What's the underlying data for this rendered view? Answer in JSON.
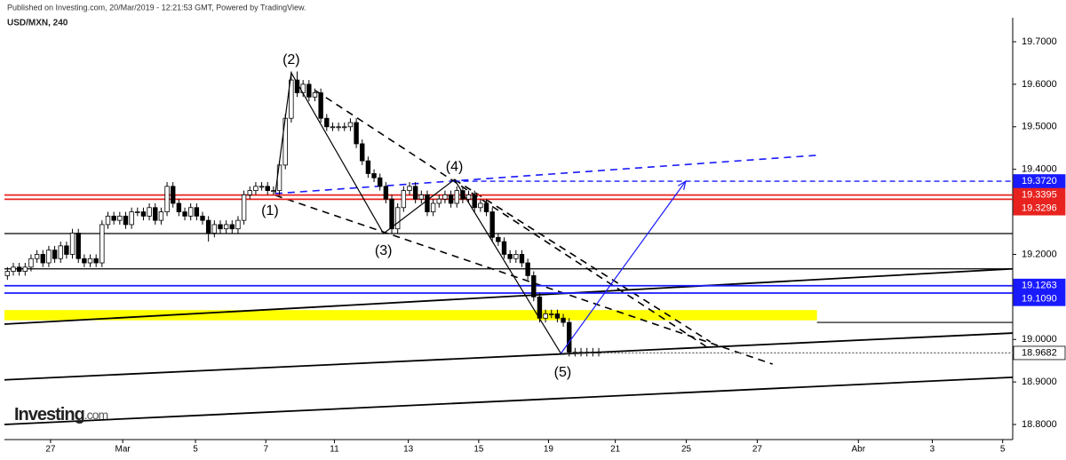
{
  "header": {
    "published": "Published on Investing.com, 20/Mar/2019 - 12:21:53 GMT, Powered by TradingView.",
    "symbol": "USD/MXN, 240",
    "logo": "Investing",
    "logo_suffix": ".com"
  },
  "chart_data": {
    "type": "candlestick",
    "x": [
      0,
      1,
      2,
      3,
      4,
      5,
      6,
      7,
      8,
      9,
      10,
      11,
      12,
      13,
      14,
      15,
      16,
      17,
      18,
      19,
      20,
      21,
      22,
      23,
      24,
      25,
      26,
      27,
      28,
      29,
      30,
      31,
      32,
      33,
      34,
      35,
      36,
      37,
      38,
      39,
      40,
      41,
      42,
      43,
      44,
      45,
      46,
      47,
      48,
      49,
      50,
      51,
      52,
      53,
      54,
      55,
      56,
      57,
      58,
      59,
      60,
      61,
      62,
      63,
      64,
      65,
      66,
      67,
      68,
      69,
      70,
      71,
      72,
      73,
      74,
      75,
      76,
      77,
      78,
      79,
      80,
      81,
      82,
      83,
      84,
      85,
      86,
      87,
      88,
      89,
      90,
      91,
      92,
      93,
      94,
      95,
      96,
      97,
      98,
      99,
      100
    ],
    "open": [
      19.15,
      19.16,
      19.17,
      19.16,
      19.17,
      19.19,
      19.2,
      19.18,
      19.21,
      19.19,
      19.22,
      19.2,
      19.25,
      19.19,
      19.18,
      19.19,
      19.18,
      19.27,
      19.29,
      19.28,
      19.29,
      19.27,
      19.3,
      19.3,
      19.29,
      19.31,
      19.28,
      19.3,
      19.36,
      19.32,
      19.3,
      19.29,
      19.31,
      19.29,
      19.28,
      19.25,
      19.27,
      19.26,
      19.27,
      19.26,
      19.28,
      19.34,
      19.35,
      19.36,
      19.36,
      19.35,
      19.35,
      19.41,
      19.52,
      19.61,
      19.58,
      19.6,
      19.57,
      19.58,
      19.52,
      19.5,
      19.5,
      19.5,
      19.5,
      19.51,
      19.46,
      19.42,
      19.39,
      19.38,
      19.36,
      19.33,
      19.26,
      19.31,
      19.35,
      19.36,
      19.33,
      19.34,
      19.3,
      19.32,
      19.33,
      19.34,
      19.32,
      19.35,
      19.33,
      19.34,
      19.31,
      19.32,
      19.3,
      19.24,
      19.23,
      19.2,
      19.19,
      19.2,
      19.18,
      19.15,
      19.1,
      19.05,
      19.06,
      19.06,
      19.05,
      19.04,
      18.97,
      18.97,
      18.97,
      18.97,
      18.97
    ],
    "high": [
      19.17,
      19.18,
      19.18,
      19.18,
      19.2,
      19.21,
      19.21,
      19.22,
      19.22,
      19.23,
      19.23,
      19.26,
      19.26,
      19.2,
      19.2,
      19.2,
      19.28,
      19.3,
      19.3,
      19.3,
      19.3,
      19.31,
      19.31,
      19.31,
      19.32,
      19.32,
      19.31,
      19.37,
      19.37,
      19.33,
      19.31,
      19.32,
      19.32,
      19.3,
      19.29,
      19.28,
      19.28,
      19.28,
      19.28,
      19.29,
      19.35,
      19.36,
      19.37,
      19.37,
      19.37,
      19.36,
      19.42,
      19.53,
      19.63,
      19.63,
      19.61,
      19.61,
      19.59,
      19.59,
      19.53,
      19.51,
      19.51,
      19.51,
      19.52,
      19.52,
      19.47,
      19.43,
      19.4,
      19.39,
      19.37,
      19.34,
      19.32,
      19.36,
      19.37,
      19.37,
      19.35,
      19.35,
      19.33,
      19.34,
      19.35,
      19.35,
      19.36,
      19.36,
      19.35,
      19.35,
      19.33,
      19.33,
      19.31,
      19.25,
      19.24,
      19.21,
      19.21,
      19.21,
      19.19,
      19.16,
      19.11,
      19.07,
      19.07,
      19.07,
      19.06,
      19.05,
      18.98,
      18.98,
      18.98,
      18.98,
      18.98
    ],
    "low": [
      19.14,
      19.15,
      19.15,
      19.15,
      19.16,
      19.18,
      19.17,
      19.17,
      19.18,
      19.18,
      19.19,
      19.19,
      19.18,
      19.17,
      19.17,
      19.17,
      19.17,
      19.26,
      19.27,
      19.27,
      19.26,
      19.26,
      19.29,
      19.28,
      19.28,
      19.27,
      19.27,
      19.29,
      19.31,
      19.29,
      19.28,
      19.28,
      19.28,
      19.27,
      19.23,
      19.24,
      19.25,
      19.25,
      19.25,
      19.25,
      19.27,
      19.33,
      19.34,
      19.35,
      19.34,
      19.34,
      19.34,
      19.4,
      19.51,
      19.57,
      19.57,
      19.56,
      19.56,
      19.51,
      19.49,
      19.49,
      19.49,
      19.49,
      19.49,
      19.45,
      19.41,
      19.38,
      19.37,
      19.35,
      19.32,
      19.25,
      19.25,
      19.3,
      19.34,
      19.32,
      19.32,
      19.29,
      19.29,
      19.31,
      19.32,
      19.31,
      19.31,
      19.32,
      19.32,
      19.3,
      19.3,
      19.29,
      19.23,
      19.22,
      19.19,
      19.18,
      19.18,
      19.17,
      19.14,
      19.09,
      19.04,
      19.04,
      19.05,
      19.04,
      19.03,
      18.96,
      18.96,
      18.96,
      18.96,
      18.96,
      18.96
    ],
    "close": [
      19.16,
      19.17,
      19.16,
      19.17,
      19.19,
      19.2,
      19.18,
      19.21,
      19.19,
      19.22,
      19.2,
      19.25,
      19.19,
      19.18,
      19.19,
      19.18,
      19.27,
      19.29,
      19.28,
      19.29,
      19.27,
      19.3,
      19.3,
      19.29,
      19.31,
      19.28,
      19.3,
      19.36,
      19.32,
      19.3,
      19.29,
      19.31,
      19.29,
      19.28,
      19.25,
      19.27,
      19.26,
      19.27,
      19.26,
      19.28,
      19.34,
      19.35,
      19.36,
      19.36,
      19.35,
      19.35,
      19.41,
      19.52,
      19.61,
      19.58,
      19.6,
      19.57,
      19.58,
      19.52,
      19.5,
      19.5,
      19.5,
      19.5,
      19.51,
      19.46,
      19.42,
      19.39,
      19.38,
      19.36,
      19.33,
      19.26,
      19.31,
      19.35,
      19.36,
      19.33,
      19.34,
      19.3,
      19.32,
      19.33,
      19.34,
      19.32,
      19.35,
      19.33,
      19.34,
      19.31,
      19.32,
      19.3,
      19.24,
      19.23,
      19.2,
      19.19,
      19.2,
      19.18,
      19.15,
      19.1,
      19.05,
      19.06,
      19.06,
      19.05,
      19.04,
      18.97,
      18.97,
      18.97,
      18.97,
      18.97,
      18.97
    ],
    "up_color": "#ffffff",
    "down_color": "#000000",
    "xlim": [
      -0.5,
      170
    ],
    "xticks": [
      {
        "value": 7.3,
        "label": "27"
      },
      {
        "value": 19.5,
        "label": "Mar"
      },
      {
        "value": 31.8,
        "label": "5"
      },
      {
        "value": 43.7,
        "label": "7"
      },
      {
        "value": 55.3,
        "label": "11"
      },
      {
        "value": 67.8,
        "label": "13"
      },
      {
        "value": 79.7,
        "label": "15"
      },
      {
        "value": 91.5,
        "label": "19"
      },
      {
        "value": 102.8,
        "label": "21"
      },
      {
        "value": 114.8,
        "label": "25"
      },
      {
        "value": 126.8,
        "label": "27"
      },
      {
        "value": 143.9,
        "label": "Abr"
      },
      {
        "value": 156.4,
        "label": "3"
      },
      {
        "value": 168.3,
        "label": "5"
      }
    ],
    "ylim": [
      18.7645,
      19.7355
    ],
    "yticks": [
      {
        "value": 19.7,
        "label": "19.7000"
      },
      {
        "value": 19.6,
        "label": "19.6000"
      },
      {
        "value": 19.5,
        "label": "19.5000"
      },
      {
        "value": 19.4,
        "label": "19.4000"
      },
      {
        "value": 19.2,
        "label": "19.2000"
      },
      {
        "value": 19.0,
        "label": "19.0000"
      },
      {
        "value": 18.9,
        "label": "18.9000"
      },
      {
        "value": 18.8,
        "label": "18.8000"
      }
    ],
    "levels": [
      {
        "value": 19.372,
        "label": "19.3720",
        "color": "#1a1aff",
        "text_color": "#ffffff",
        "dashed": true,
        "x0": 75.6
      },
      {
        "value": 19.3395,
        "label": "19.3395",
        "color": "#e8231f",
        "text_color": "#ffffff",
        "dashed": false,
        "x0": -0.5
      },
      {
        "value": 19.3296,
        "label": "19.3296",
        "color": "#e8231f",
        "text_color": "#ffffff",
        "dashed": false,
        "x0": -0.5
      },
      {
        "value": 19.1263,
        "label": "19.1263",
        "color": "#1a1aff",
        "text_color": "#ffffff",
        "dashed": false,
        "x0": -0.5
      },
      {
        "value": 19.109,
        "label": "19.1090",
        "color": "#1a1aff",
        "text_color": "#ffffff",
        "dashed": false,
        "x0": -0.5
      },
      {
        "value": 18.9682,
        "label": "18.9682",
        "color": "#ffffff",
        "text_color": "#000000",
        "dashed": true,
        "x0": 93.6
      }
    ],
    "hlines": [
      19.249,
      19.166
    ],
    "zone": {
      "from": 19.045,
      "to": 19.069,
      "x1": 136.9,
      "color": "#ffff00"
    },
    "zone_line": {
      "value": 19.04,
      "x0": 136.9
    },
    "trendlines": [
      {
        "x": [
          -0.5,
          170
        ],
        "y": [
          19.036,
          19.166
        ],
        "color": "#000000",
        "dashed": false
      },
      {
        "x": [
          -0.5,
          170
        ],
        "y": [
          18.905,
          19.015
        ],
        "color": "#000000",
        "dashed": false
      },
      {
        "x": [
          -0.5,
          170
        ],
        "y": [
          18.8,
          18.911
        ],
        "color": "#000000",
        "dashed": false
      },
      {
        "x": [
          52.1,
          118.1
        ],
        "y": [
          19.585,
          18.984
        ],
        "color": "#000000",
        "dashed": true
      },
      {
        "x": [
          45.3,
          129.4
        ],
        "y": [
          19.339,
          18.942
        ],
        "color": "#000000",
        "dashed": true
      },
      {
        "x": [
          75.6,
          118.9
        ],
        "y": [
          19.376,
          18.994
        ],
        "color": "#000000",
        "dashed": true
      },
      {
        "x": [
          45.3,
          136.9
        ],
        "y": [
          19.343,
          19.433
        ],
        "color": "#1a1aff",
        "dashed": true
      }
    ],
    "wave": {
      "x": [
        45.3,
        48.0,
        63.6,
        75.6,
        93.6
      ],
      "y": [
        19.343,
        19.627,
        19.249,
        19.376,
        18.967
      ],
      "labels": [
        "(1)",
        "(2)",
        "(3)",
        "(4)",
        "(5)"
      ]
    },
    "projection": {
      "x": [
        93.6,
        114.7
      ],
      "y": [
        18.967,
        19.372
      ],
      "color": "#1a1aff"
    }
  }
}
